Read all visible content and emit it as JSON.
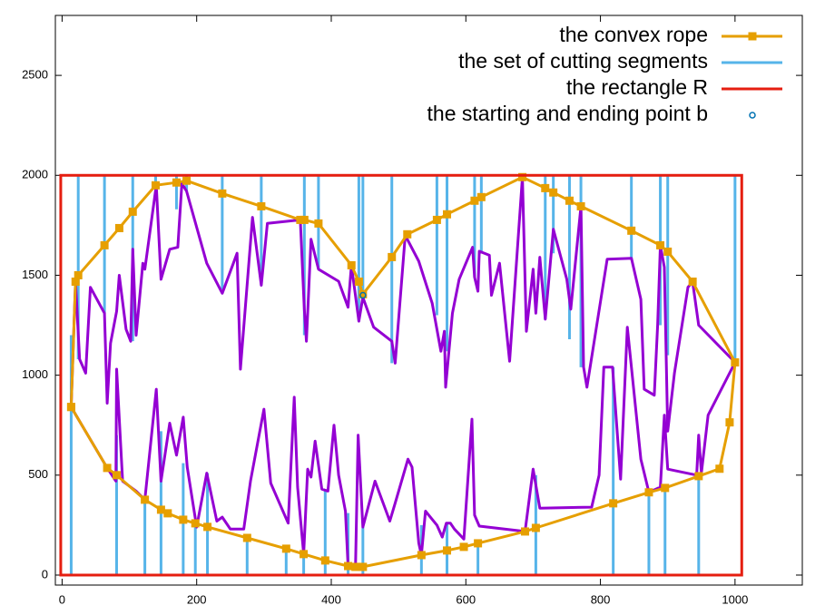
{
  "chart_data": {
    "type": "line",
    "xlim": [
      -10,
      1100
    ],
    "ylim": [
      -50,
      2800
    ],
    "xticks": [
      0,
      200,
      400,
      600,
      800,
      1000
    ],
    "yticks": [
      0,
      500,
      1000,
      1500,
      2000,
      2500
    ],
    "legend_position": "top-right",
    "series": [
      {
        "name": "the convex rope",
        "color": "#e69f00",
        "marker": "square",
        "x": [
          13.5,
          67,
          81,
          123,
          147,
          157,
          180,
          198,
          216,
          275,
          333,
          359,
          391,
          425,
          436,
          447,
          534,
          572,
          597,
          618,
          688,
          704,
          819,
          872,
          896,
          946,
          977,
          992,
          1000,
          937,
          900,
          889,
          846,
          771,
          754,
          730,
          718,
          684,
          623,
          613,
          572,
          557,
          513,
          490,
          447,
          441,
          430,
          381,
          360,
          354,
          296,
          238,
          185,
          170,
          139,
          105,
          85,
          63,
          24,
          20,
          13.5
        ],
        "values": [
          841,
          536,
          500,
          377,
          327,
          309,
          277,
          259,
          241,
          186,
          132,
          105,
          73,
          45,
          41,
          41,
          100,
          123,
          141,
          159,
          218,
          236,
          359,
          414,
          436,
          495,
          532,
          764,
          1064,
          1468,
          1618,
          1650,
          1723,
          1845,
          1873,
          1914,
          1936,
          1991,
          1891,
          1873,
          1805,
          1777,
          1705,
          1591,
          1405,
          1468,
          1550,
          1759,
          1777,
          1777,
          1845,
          1909,
          1973,
          1964,
          1950,
          1818,
          1736,
          1650,
          1500,
          1468,
          841
        ]
      },
      {
        "name": "the set of cutting segments",
        "color": "#56b4e9",
        "marker": "segments",
        "x": [
          24,
          63,
          105,
          139,
          170,
          185,
          238,
          296,
          360,
          381,
          441,
          447,
          490,
          557,
          572,
          613,
          623,
          718,
          730,
          754,
          771,
          846,
          889,
          900,
          1000,
          13.5,
          81,
          123,
          147,
          180,
          198,
          216,
          275,
          333,
          359,
          391,
          425,
          447,
          534,
          572,
          618,
          704,
          819,
          872,
          896,
          946
        ],
        "y_from": [
          2000,
          2000,
          2000,
          2000,
          2000,
          2000,
          2000,
          2000,
          2000,
          2000,
          2000,
          2000,
          2000,
          2000,
          2000,
          2000,
          2000,
          2000,
          2000,
          2000,
          2000,
          2000,
          2000,
          2000,
          2000,
          0,
          0,
          0,
          0,
          0,
          0,
          0,
          0,
          0,
          0,
          0,
          0,
          0,
          0,
          0,
          0,
          0,
          0,
          0,
          0,
          0
        ],
        "y_to": [
          1080,
          1310,
          1170,
          1950,
          1830,
          1920,
          1430,
          1450,
          1200,
          1530,
          1270,
          1390,
          1060,
          1300,
          1120,
          1490,
          1620,
          1280,
          1610,
          1180,
          1040,
          1580,
          1250,
          1100,
          1064,
          1200,
          700,
          377,
          720,
          560,
          259,
          510,
          186,
          132,
          150,
          430,
          310,
          240,
          250,
          260,
          159,
          500,
          1040,
          414,
          436,
          495
        ]
      },
      {
        "name": "the rectangle R",
        "color": "#e51e10",
        "marker": "rect",
        "x": [
          -2,
          1010
        ],
        "values": [
          0,
          2000
        ]
      },
      {
        "name": "the starting and ending point b",
        "color": "#0072b2",
        "marker": "circle",
        "x": [
          447
        ],
        "values": [
          1400
        ]
      }
    ],
    "polygon": {
      "color": "#9400d3",
      "x": [
        13.5,
        20,
        26,
        35,
        42,
        63,
        67,
        72,
        81,
        85,
        95,
        102,
        105,
        110,
        120,
        123,
        140,
        147,
        160,
        172,
        178,
        185,
        215,
        238,
        260,
        265,
        283,
        296,
        305,
        354,
        360,
        363,
        370,
        381,
        411,
        425,
        430,
        441,
        447,
        463,
        490,
        495,
        510,
        530,
        550,
        563,
        568,
        570,
        580,
        590,
        610,
        613,
        618,
        620,
        635,
        638,
        650,
        665,
        684,
        690,
        700,
        704,
        710,
        718,
        730,
        750,
        756,
        771,
        775,
        780,
        810,
        846,
        860,
        865,
        880,
        885,
        889,
        895,
        900,
        910,
        930,
        937,
        946,
        1000,
        960,
        950,
        946,
        943,
        900,
        895,
        889,
        872,
        860,
        840,
        830,
        818,
        805,
        798,
        787,
        710,
        700,
        688,
        620,
        613,
        609,
        597,
        583,
        577,
        571,
        565,
        557,
        540,
        534,
        530,
        520,
        514,
        495,
        487,
        465,
        447,
        440,
        436,
        425,
        421,
        411,
        404,
        395,
        386,
        376,
        370,
        365,
        359,
        350,
        345,
        336,
        310,
        300,
        280,
        270,
        250,
        238,
        230,
        215,
        200,
        186,
        180,
        170,
        160,
        147,
        140,
        123,
        110,
        90,
        81,
        80,
        67,
        13.5
      ],
      "values": [
        841,
        1468,
        1080,
        1010,
        1440,
        1310,
        860,
        1160,
        1320,
        1500,
        1230,
        1170,
        1630,
        1200,
        1560,
        1530,
        1950,
        1480,
        1630,
        1640,
        1960,
        1920,
        1560,
        1410,
        1610,
        1030,
        1790,
        1450,
        1760,
        1777,
        1330,
        1170,
        1680,
        1530,
        1470,
        1340,
        1550,
        1270,
        1390,
        1240,
        1170,
        1060,
        1700,
        1570,
        1360,
        1120,
        1220,
        940,
        1310,
        1480,
        1640,
        1490,
        1420,
        1620,
        1600,
        1400,
        1560,
        1070,
        1991,
        1220,
        1530,
        1310,
        1590,
        1280,
        1730,
        1480,
        1330,
        1845,
        1040,
        940,
        1580,
        1585,
        1380,
        930,
        900,
        1250,
        1650,
        1540,
        720,
        1010,
        1440,
        1468,
        1250,
        1064,
        800,
        510,
        700,
        500,
        530,
        800,
        440,
        414,
        580,
        1240,
        480,
        1040,
        1040,
        500,
        340,
        335,
        530,
        218,
        245,
        300,
        780,
        180,
        230,
        260,
        260,
        190,
        250,
        320,
        100,
        160,
        540,
        580,
        360,
        270,
        470,
        240,
        700,
        41,
        45,
        320,
        500,
        750,
        420,
        430,
        670,
        490,
        530,
        105,
        440,
        890,
        260,
        460,
        830,
        470,
        230,
        230,
        290,
        270,
        510,
        240,
        540,
        790,
        600,
        760,
        470,
        930,
        377,
        420,
        470,
        1030,
        470,
        536,
        841
      ]
    }
  }
}
